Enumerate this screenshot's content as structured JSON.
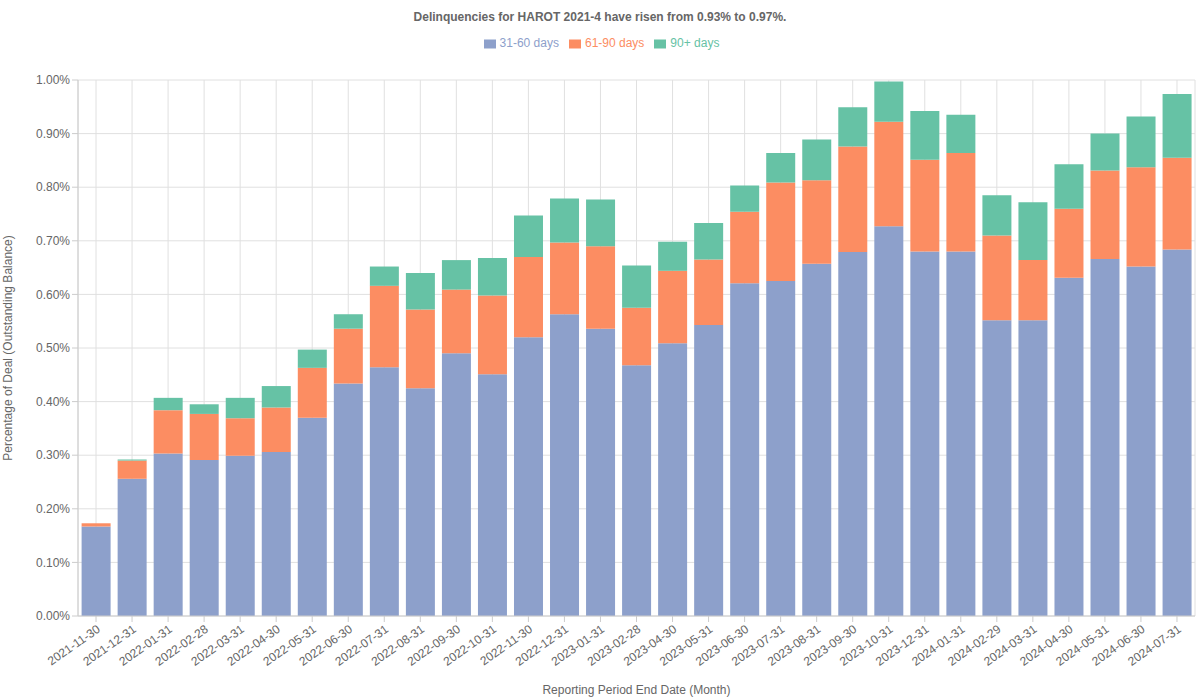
{
  "chart_data": {
    "type": "bar",
    "title": "Delinquencies for HAROT 2021-4 have risen from 0.93% to 0.97%.",
    "x_label": "Reporting Period End Date (Month)",
    "y_label": "Percentage of Deal (Outstanding Balance)",
    "categories": [
      "2021-11-30",
      "2021-12-31",
      "2022-01-31",
      "2022-02-28",
      "2022-03-31",
      "2022-04-30",
      "2022-05-31",
      "2022-06-30",
      "2022-07-31",
      "2022-08-31",
      "2022-09-30",
      "2022-10-31",
      "2022-11-30",
      "2022-12-31",
      "2023-01-31",
      "2023-02-28",
      "2023-04-30",
      "2023-05-31",
      "2023-06-30",
      "2023-07-31",
      "2023-08-31",
      "2023-09-30",
      "2023-10-31",
      "2023-12-31",
      "2024-01-31",
      "2024-02-29",
      "2024-03-31",
      "2024-04-30",
      "2024-05-31",
      "2024-06-30",
      "2024-07-31"
    ],
    "series": [
      {
        "name": "31-60 days",
        "color": "#8da0cb",
        "values": [
          0.167,
          0.256,
          0.303,
          0.291,
          0.299,
          0.306,
          0.37,
          0.434,
          0.464,
          0.425,
          0.49,
          0.451,
          0.52,
          0.563,
          0.536,
          0.468,
          0.509,
          0.543,
          0.621,
          0.625,
          0.657,
          0.679,
          0.727,
          0.68,
          0.68,
          0.552,
          0.552,
          0.631,
          0.666,
          0.652,
          0.684
        ]
      },
      {
        "name": "61-90 days",
        "color": "#fc8d62",
        "values": [
          0.006,
          0.034,
          0.081,
          0.086,
          0.07,
          0.083,
          0.093,
          0.102,
          0.152,
          0.147,
          0.119,
          0.147,
          0.15,
          0.134,
          0.154,
          0.107,
          0.135,
          0.122,
          0.133,
          0.184,
          0.156,
          0.197,
          0.195,
          0.171,
          0.184,
          0.158,
          0.112,
          0.129,
          0.165,
          0.185,
          0.171
        ]
      },
      {
        "name": "90+ days",
        "color": "#66c2a5",
        "values": [
          0,
          0.002,
          0.023,
          0.018,
          0.038,
          0.04,
          0.034,
          0.027,
          0.036,
          0.068,
          0.055,
          0.07,
          0.077,
          0.082,
          0.087,
          0.079,
          0.054,
          0.068,
          0.049,
          0.055,
          0.076,
          0.073,
          0.075,
          0.091,
          0.071,
          0.075,
          0.108,
          0.083,
          0.069,
          0.095,
          0.119
        ]
      }
    ],
    "ylim": [
      0,
      1
    ],
    "yticks": [
      {
        "value": 0,
        "label": "0.00%"
      },
      {
        "value": 0.1,
        "label": "0.10%"
      },
      {
        "value": 0.2,
        "label": "0.20%"
      },
      {
        "value": 0.3,
        "label": "0.30%"
      },
      {
        "value": 0.4,
        "label": "0.40%"
      },
      {
        "value": 0.5,
        "label": "0.50%"
      },
      {
        "value": 0.6,
        "label": "0.60%"
      },
      {
        "value": 0.7,
        "label": "0.70%"
      },
      {
        "value": 0.8,
        "label": "0.80%"
      },
      {
        "value": 0.9,
        "label": "0.90%"
      },
      {
        "value": 1,
        "label": "1.00%"
      }
    ],
    "stacked": true,
    "grid": true,
    "legend": "top"
  }
}
